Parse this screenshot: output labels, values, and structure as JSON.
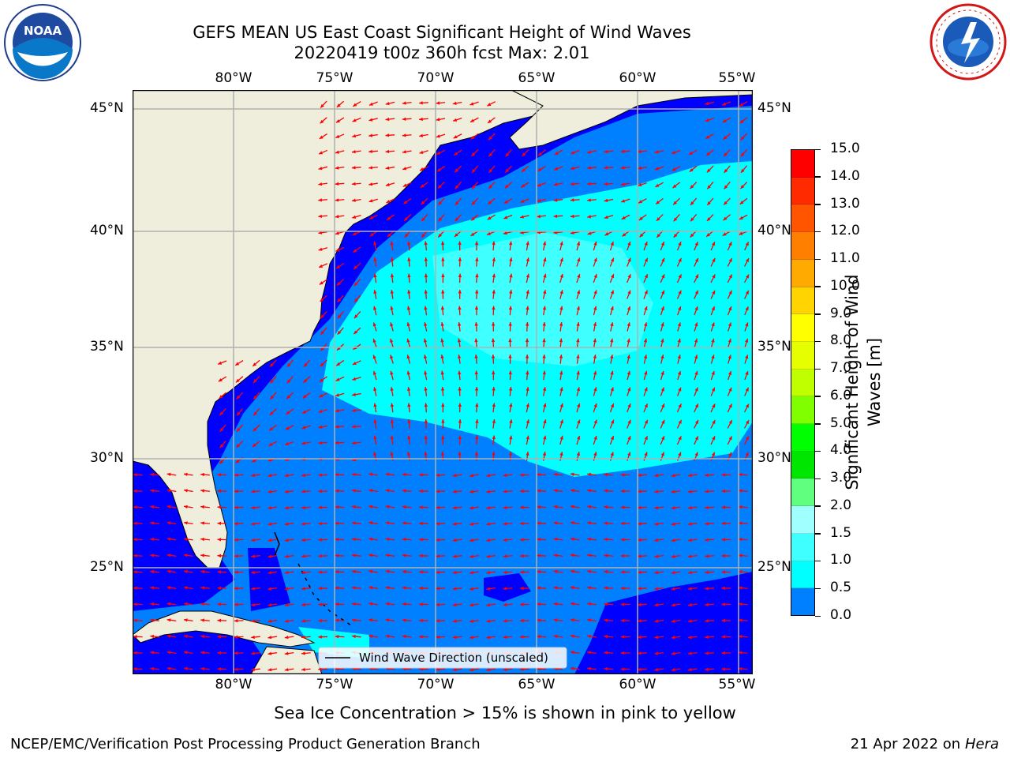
{
  "title": {
    "line1": "GEFS MEAN US East Coast Significant Height of Wind Waves",
    "line2": "20220419 t00z 360h fcst   Max: 2.01"
  },
  "logos": {
    "left": "NOAA",
    "right": "NATIONAL WEATHER SERVICE"
  },
  "map": {
    "lon_labels": [
      "80°W",
      "75°W",
      "70°W",
      "65°W",
      "60°W",
      "55°W"
    ],
    "lat_labels": [
      "45°N",
      "40°N",
      "35°N",
      "30°N",
      "25°N"
    ],
    "legend": "Wind Wave Direction (unscaled)",
    "colors": {
      "land": "#efeedc",
      "ocean_0": "#0000ff",
      "ocean_05": "#0080ff",
      "ocean_1": "#00ffff",
      "ocean_15": "#40ffff",
      "ocean_2": "#a0ffff",
      "arrow": "#ff0000",
      "grid": "#b0b0b0"
    }
  },
  "colorbar": {
    "label": "Significant Height of Wind Waves [m]",
    "ticks": [
      "15.0",
      "14.0",
      "13.0",
      "12.0",
      "11.0",
      "10.0",
      "9.0",
      "8.0",
      "7.0",
      "6.0",
      "5.0",
      "4.0",
      "3.0",
      "2.0",
      "1.5",
      "1.0",
      "0.5",
      "0.0"
    ],
    "colors": [
      "#ff0000",
      "#ff2a00",
      "#ff5500",
      "#ff8000",
      "#ffaa00",
      "#ffd400",
      "#ffff00",
      "#e6ff00",
      "#bfff00",
      "#80ff00",
      "#00ff00",
      "#00e600",
      "#60ff80",
      "#a0ffff",
      "#40ffff",
      "#00ffff",
      "#0080ff",
      "#0000ff"
    ]
  },
  "note": "Sea Ice Concentration > 15% is shown in pink to yellow",
  "footer": {
    "left": "NCEP/EMC/Verification Post Processing Product Generation Branch",
    "right_prefix": "21 Apr 2022 on ",
    "right_host": "Hera"
  }
}
